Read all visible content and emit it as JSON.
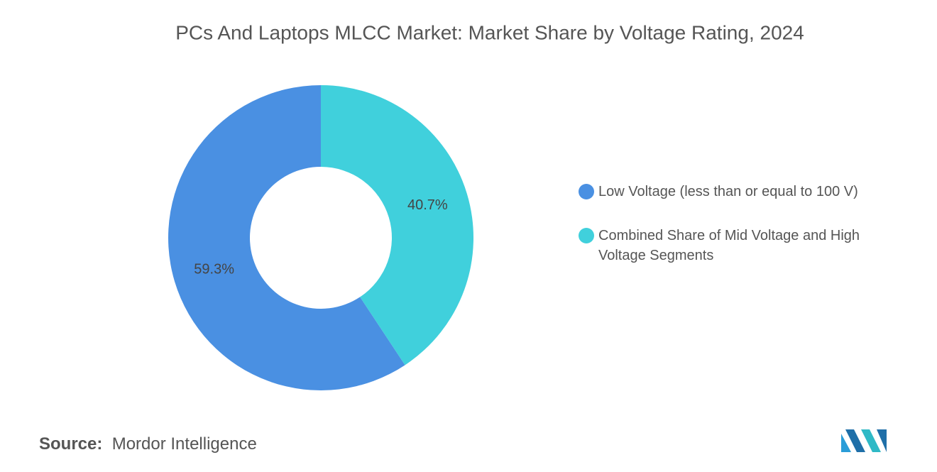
{
  "chart_data": {
    "type": "donut",
    "title": "PCs And Laptops MLCC Market: Market Share by Voltage Rating, 2024",
    "categories": [
      "Low Voltage (less than or equal to 100 V)",
      "Combined Share of Mid Voltage and High Voltage Segments"
    ],
    "values": [
      59.3,
      40.7
    ],
    "value_labels": [
      "59.3%",
      "40.7%"
    ],
    "colors": [
      "#4a90e2",
      "#40d0dc"
    ],
    "legend": "right"
  },
  "footer": {
    "source_label": "Source:",
    "source": "Mordor Intelligence"
  }
}
